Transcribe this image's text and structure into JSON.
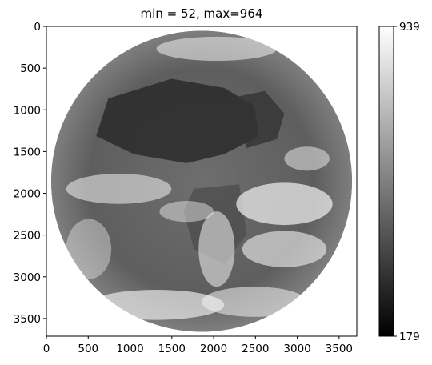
{
  "chart_data": {
    "type": "heatmap",
    "title": "min = 52, max=964",
    "xlabel": "",
    "ylabel": "",
    "colormap": "gray",
    "colormap_colors": [
      "#000000",
      "#ffffff"
    ],
    "image_min": 52,
    "image_max": 964,
    "image_extent": [
      0,
      3712
    ],
    "xlim": [
      0,
      3712
    ],
    "ylim": [
      3712,
      0
    ],
    "x_ticks": [
      0,
      500,
      1000,
      1500,
      2000,
      2500,
      3000,
      3500
    ],
    "y_ticks": [
      0,
      500,
      1000,
      1500,
      2000,
      2500,
      3000,
      3500
    ],
    "disk": {
      "center": [
        1856,
        1856
      ],
      "radius": 1800
    },
    "colorbar": {
      "vmin": 179,
      "vmax": 939,
      "tick_labels": [
        "939",
        "179"
      ]
    },
    "grid": false,
    "frame_color": "#000000",
    "background_color": "#ffffff"
  }
}
